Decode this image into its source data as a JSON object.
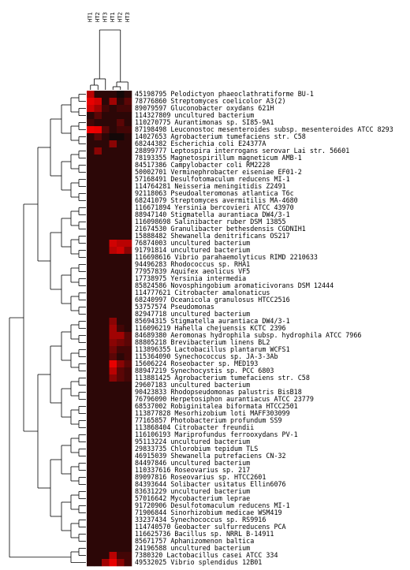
{
  "columns": [
    "HT1",
    "HT2",
    "HT3",
    "HT1",
    "HT2",
    "HT3"
  ],
  "rows": [
    {
      "id": "45198795",
      "name": "Pelodictyon phaeoclathratiforme BU-1",
      "v": [
        0.7,
        0.1,
        0.1,
        0.1,
        0.0,
        0.1
      ]
    },
    {
      "id": "78776860",
      "name": "Streptomyces coelicolor A3(2)",
      "v": [
        0.9,
        0.8,
        0.1,
        0.6,
        0.1,
        0.3
      ]
    },
    {
      "id": "89079597",
      "name": "Gluconobacter oxydans 621H",
      "v": [
        0.8,
        0.6,
        0.2,
        0.1,
        0.2,
        0.2
      ]
    },
    {
      "id": "114327809",
      "name": "uncultured bacterium",
      "v": [
        0.1,
        0.3,
        0.1,
        0.1,
        0.1,
        0.1
      ]
    },
    {
      "id": "110270775",
      "name": "Aurantimonas sp. SI85-9A1",
      "v": [
        0.2,
        0.1,
        0.1,
        0.1,
        0.3,
        0.1
      ]
    },
    {
      "id": "87198498",
      "name": "Leuconostoc mesenteroides subsp. mesenteroides ATCC 8293",
      "v": [
        0.95,
        0.9,
        0.3,
        0.1,
        0.2,
        0.2
      ]
    },
    {
      "id": "14027653",
      "name": "Agrobacterium tumefaciens str. C58",
      "v": [
        0.1,
        0.3,
        0.1,
        0.0,
        0.0,
        0.1
      ]
    },
    {
      "id": "68244382",
      "name": "Escherichia coli E24377A",
      "v": [
        0.1,
        0.1,
        0.1,
        0.5,
        0.1,
        0.1
      ]
    },
    {
      "id": "28899777",
      "name": "Leptospira interrogans serovar Lai str. 56601",
      "v": [
        0.1,
        0.5,
        0.1,
        0.1,
        0.1,
        0.1
      ]
    },
    {
      "id": "78193355",
      "name": "Magnetospirillum magneticum AMB-1",
      "v": [
        0.1,
        0.1,
        0.1,
        0.1,
        0.1,
        0.1
      ]
    },
    {
      "id": "84517386",
      "name": "Campylobacter coli RM2228",
      "v": [
        0.1,
        0.1,
        0.1,
        0.1,
        0.1,
        0.1
      ]
    },
    {
      "id": "50002701",
      "name": "Verminephrobacter eiseniae EF01-2",
      "v": [
        0.1,
        0.1,
        0.1,
        0.1,
        0.1,
        0.1
      ]
    },
    {
      "id": "57168491",
      "name": "Desulfotomaculum reducens MI-1",
      "v": [
        0.1,
        0.1,
        0.1,
        0.1,
        0.1,
        0.1
      ]
    },
    {
      "id": "114764281",
      "name": "Neisseria meningitidis Z2491",
      "v": [
        0.1,
        0.1,
        0.1,
        0.1,
        0.1,
        0.1
      ]
    },
    {
      "id": "92118063",
      "name": "Pseudoalteromonas atlantica T6c",
      "v": [
        0.1,
        0.1,
        0.1,
        0.1,
        0.1,
        0.1
      ]
    },
    {
      "id": "68241079",
      "name": "Streptomyces avermitilis MA-4680",
      "v": [
        0.1,
        0.1,
        0.1,
        0.1,
        0.1,
        0.1
      ]
    },
    {
      "id": "116671894",
      "name": "Yersinia bercovieri ATCC 43970",
      "v": [
        0.1,
        0.1,
        0.1,
        0.1,
        0.1,
        0.1
      ]
    },
    {
      "id": "88947140",
      "name": "Stigmatella aurantiaca DW4/3-1",
      "v": [
        0.1,
        0.1,
        0.1,
        0.1,
        0.1,
        0.1
      ]
    },
    {
      "id": "116098698",
      "name": "Salinibacter ruber DSM 13855",
      "v": [
        0.1,
        0.1,
        0.1,
        0.1,
        0.1,
        0.1
      ]
    },
    {
      "id": "21674530",
      "name": "Granulibacter bethesdensis CGDNIH1",
      "v": [
        0.1,
        0.1,
        0.1,
        0.1,
        0.1,
        0.1
      ]
    },
    {
      "id": "15888482",
      "name": "Shewanella denitrificans OS217",
      "v": [
        0.1,
        0.1,
        0.1,
        0.1,
        0.1,
        0.1
      ]
    },
    {
      "id": "76874003",
      "name": "uncultured bacterium",
      "v": [
        0.1,
        0.1,
        0.1,
        0.8,
        0.7,
        0.7
      ]
    },
    {
      "id": "91791814",
      "name": "uncultured bacterium",
      "v": [
        0.1,
        0.1,
        0.1,
        0.7,
        0.8,
        0.5
      ]
    },
    {
      "id": "116698616",
      "name": "Vibrio parahaemolyticus RIMD 2210633",
      "v": [
        0.1,
        0.1,
        0.1,
        0.1,
        0.1,
        0.1
      ]
    },
    {
      "id": "94496283",
      "name": "Rhodococcus sp. RHA1",
      "v": [
        0.1,
        0.1,
        0.1,
        0.1,
        0.1,
        0.1
      ]
    },
    {
      "id": "77957839",
      "name": "Aquifex aeolicus VF5",
      "v": [
        0.1,
        0.1,
        0.1,
        0.1,
        0.1,
        0.1
      ]
    },
    {
      "id": "17738975",
      "name": "Yersinia intermedia",
      "v": [
        0.1,
        0.1,
        0.1,
        0.1,
        0.1,
        0.1
      ]
    },
    {
      "id": "85824586",
      "name": "Novosphingobium aromaticivorans DSM 12444",
      "v": [
        0.1,
        0.1,
        0.1,
        0.1,
        0.1,
        0.1
      ]
    },
    {
      "id": "114777621",
      "name": "Citrobacter amalonaticus",
      "v": [
        0.1,
        0.1,
        0.1,
        0.1,
        0.1,
        0.1
      ]
    },
    {
      "id": "68240997",
      "name": "Oceanicola granulosus HTCC2516",
      "v": [
        0.1,
        0.1,
        0.1,
        0.1,
        0.1,
        0.1
      ]
    },
    {
      "id": "53757574",
      "name": "Pseudomonas",
      "v": [
        0.1,
        0.1,
        0.1,
        0.1,
        0.1,
        0.1
      ]
    },
    {
      "id": "82947718",
      "name": "uncultured bacterium",
      "v": [
        0.1,
        0.1,
        0.1,
        0.1,
        0.1,
        0.1
      ]
    },
    {
      "id": "85694315",
      "name": "Stigmatella aurantiaca DW4/3-1",
      "v": [
        0.1,
        0.1,
        0.1,
        0.5,
        0.1,
        0.1
      ]
    },
    {
      "id": "116096219",
      "name": "Hahella chejuensis KCTC 2396",
      "v": [
        0.1,
        0.1,
        0.1,
        0.6,
        0.2,
        0.1
      ]
    },
    {
      "id": "84689380",
      "name": "Aeromonas hydrophila subsp. hydrophila ATCC 7966",
      "v": [
        0.1,
        0.1,
        0.1,
        0.6,
        0.6,
        0.3
      ]
    },
    {
      "id": "88805218",
      "name": "Brevibacterium linens BL2",
      "v": [
        0.1,
        0.1,
        0.1,
        0.5,
        0.4,
        0.3
      ]
    },
    {
      "id": "113896355",
      "name": "Lactobacillus plantarum WCFS1",
      "v": [
        0.1,
        0.1,
        0.1,
        0.4,
        0.2,
        0.2
      ]
    },
    {
      "id": "115364090",
      "name": "Synechococcus sp. JA-3-3Ab",
      "v": [
        0.1,
        0.1,
        0.1,
        0.3,
        0.1,
        0.2
      ]
    },
    {
      "id": "15606224",
      "name": "Roseobacter sp. MED193",
      "v": [
        0.1,
        0.1,
        0.1,
        0.9,
        0.5,
        0.3
      ]
    },
    {
      "id": "88947219",
      "name": "Synechocystis sp. PCC 6803",
      "v": [
        0.1,
        0.1,
        0.1,
        0.7,
        0.3,
        0.2
      ]
    },
    {
      "id": "113881425",
      "name": "Agrobacterium tumefaciens str. C58",
      "v": [
        0.1,
        0.1,
        0.1,
        0.5,
        0.3,
        0.2
      ]
    },
    {
      "id": "29607183",
      "name": "uncultured bacterium",
      "v": [
        0.1,
        0.1,
        0.1,
        0.1,
        0.1,
        0.1
      ]
    },
    {
      "id": "90423833",
      "name": "Rhodopseudomonas palustris BisB18",
      "v": [
        0.1,
        0.1,
        0.1,
        0.1,
        0.1,
        0.1
      ]
    },
    {
      "id": "76796090",
      "name": "Herpetosiphon aurantiacus ATCC 23779",
      "v": [
        0.1,
        0.1,
        0.1,
        0.1,
        0.1,
        0.1
      ]
    },
    {
      "id": "68537002",
      "name": "Robiginitalea biformata HTCC2501",
      "v": [
        0.1,
        0.1,
        0.1,
        0.1,
        0.1,
        0.1
      ]
    },
    {
      "id": "113877828",
      "name": "Mesorhizobium loti MAFF303099",
      "v": [
        0.1,
        0.1,
        0.1,
        0.1,
        0.1,
        0.1
      ]
    },
    {
      "id": "77165857",
      "name": "Photobacterium profundum SS9",
      "v": [
        0.1,
        0.1,
        0.1,
        0.1,
        0.1,
        0.1
      ]
    },
    {
      "id": "113868404",
      "name": "Citrobacter freundii",
      "v": [
        0.1,
        0.1,
        0.1,
        0.1,
        0.1,
        0.1
      ]
    },
    {
      "id": "116106193",
      "name": "Mariprofundus ferrooxydans PV-1",
      "v": [
        0.1,
        0.1,
        0.1,
        0.1,
        0.1,
        0.1
      ]
    },
    {
      "id": "95113224",
      "name": "uncultured bacterium",
      "v": [
        0.1,
        0.1,
        0.1,
        0.1,
        0.1,
        0.1
      ]
    },
    {
      "id": "29833735",
      "name": "Chlorobium tepidum TLS",
      "v": [
        0.1,
        0.1,
        0.1,
        0.1,
        0.1,
        0.1
      ]
    },
    {
      "id": "46915039",
      "name": "Shewanella putrefaciens CN-32",
      "v": [
        0.1,
        0.1,
        0.1,
        0.1,
        0.1,
        0.1
      ]
    },
    {
      "id": "84497846",
      "name": "uncultured bacterium",
      "v": [
        0.1,
        0.1,
        0.1,
        0.1,
        0.1,
        0.1
      ]
    },
    {
      "id": "110337616",
      "name": "Roseovarius sp. 217",
      "v": [
        0.1,
        0.1,
        0.1,
        0.1,
        0.1,
        0.1
      ]
    },
    {
      "id": "89097816",
      "name": "Roseovarius sp. HTCC2601",
      "v": [
        0.1,
        0.1,
        0.1,
        0.1,
        0.1,
        0.1
      ]
    },
    {
      "id": "84393644",
      "name": "Solibacter usitatus Ellin6076",
      "v": [
        0.1,
        0.1,
        0.1,
        0.1,
        0.1,
        0.1
      ]
    },
    {
      "id": "83631229",
      "name": "uncultured bacterium",
      "v": [
        0.1,
        0.1,
        0.1,
        0.1,
        0.1,
        0.1
      ]
    },
    {
      "id": "57016642",
      "name": "Mycobacterium leprae",
      "v": [
        0.1,
        0.1,
        0.1,
        0.1,
        0.1,
        0.1
      ]
    },
    {
      "id": "91720906",
      "name": "Desulfotomaculum reducens MI-1",
      "v": [
        0.1,
        0.1,
        0.1,
        0.1,
        0.1,
        0.1
      ]
    },
    {
      "id": "71906844",
      "name": "Sinorhizobium medicae WSM419",
      "v": [
        0.1,
        0.1,
        0.1,
        0.1,
        0.1,
        0.1
      ]
    },
    {
      "id": "33237434",
      "name": "Synechococcus sp. RS9916",
      "v": [
        0.1,
        0.1,
        0.1,
        0.1,
        0.1,
        0.1
      ]
    },
    {
      "id": "114740570",
      "name": "Geobacter sulfurreducens PCA",
      "v": [
        0.1,
        0.1,
        0.1,
        0.1,
        0.1,
        0.1
      ]
    },
    {
      "id": "116625736",
      "name": "Bacillus sp. NRRL B-14911",
      "v": [
        0.1,
        0.1,
        0.1,
        0.1,
        0.1,
        0.1
      ]
    },
    {
      "id": "85671757",
      "name": "Aphanizomenon baltica",
      "v": [
        0.1,
        0.1,
        0.1,
        0.1,
        0.1,
        0.1
      ]
    },
    {
      "id": "24196588",
      "name": "uncultured bacterium",
      "v": [
        0.1,
        0.1,
        0.1,
        0.1,
        0.1,
        0.1
      ]
    },
    {
      "id": "7380320",
      "name": "Lactobacillus casei ATCC 334",
      "v": [
        0.1,
        0.1,
        0.1,
        0.7,
        0.2,
        0.2
      ]
    },
    {
      "id": "49532025",
      "name": "Vibrio splendidus 12B01",
      "v": [
        0.1,
        0.1,
        0.6,
        0.9,
        0.5,
        0.2
      ]
    }
  ]
}
